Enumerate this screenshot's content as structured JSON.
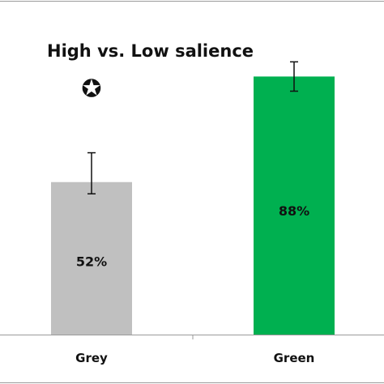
{
  "chart_data": {
    "type": "bar",
    "title": "High vs. Low salience",
    "categories": [
      "Grey",
      "Green"
    ],
    "values": [
      52,
      88
    ],
    "value_labels": [
      "52%",
      "88%"
    ],
    "error": [
      [
        48,
        62
      ],
      [
        83,
        93
      ]
    ],
    "colors": [
      "#c0c0c0",
      "#00b050"
    ],
    "annotation": {
      "symbol": "✪",
      "category": "Grey"
    },
    "xlabel": "",
    "ylabel": "",
    "ylim": [
      0,
      100
    ],
    "grid": false,
    "legend": "none"
  }
}
